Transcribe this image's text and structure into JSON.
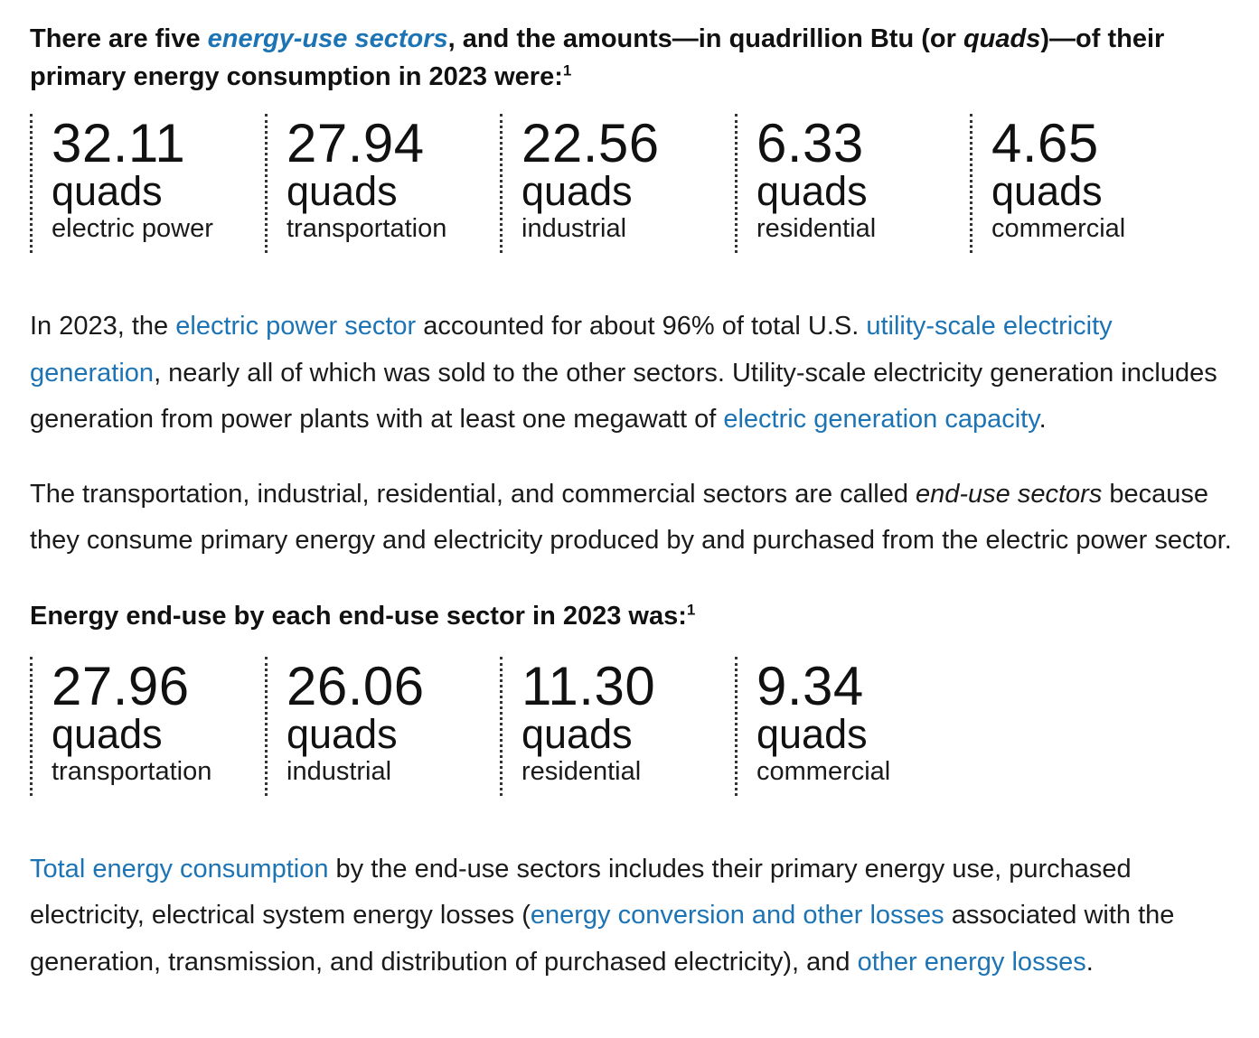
{
  "intro": {
    "prefix": "There are five ",
    "link": "energy-use sectors",
    "middle": ", and the amounts—in quadrillion Btu (or ",
    "italic": "quads",
    "suffix": ")—of their primary energy consumption in 2023 were:",
    "footnote": "1"
  },
  "primary_stats": [
    {
      "value": "32.11",
      "unit": "quads",
      "label": "electric power"
    },
    {
      "value": "27.94",
      "unit": "quads",
      "label": "transportation"
    },
    {
      "value": "22.56",
      "unit": "quads",
      "label": "industrial"
    },
    {
      "value": "6.33",
      "unit": "quads",
      "label": "residential"
    },
    {
      "value": "4.65",
      "unit": "quads",
      "label": "commercial"
    }
  ],
  "para1": {
    "t1": "In 2023, the ",
    "link1": "electric power sector",
    "t2": " accounted for about 96% of total U.S. ",
    "link2": "utility-scale electricity generation",
    "t3": ", nearly all of which was sold to the other sectors. Utility-scale electricity generation includes generation from power plants with at least one megawatt of ",
    "link3": "electric generation capacity",
    "t4": "."
  },
  "para2": {
    "t1": "The transportation, industrial, residential, and commercial sectors are called ",
    "italic": "end-use sectors",
    "t2": " because they consume primary energy and electricity produced by and purchased from the electric power sector."
  },
  "endUseHeading": {
    "text": "Energy end-use by each end-use sector in 2023 was:",
    "footnote": "1"
  },
  "enduse_stats": [
    {
      "value": "27.96",
      "unit": "quads",
      "label": "transportation"
    },
    {
      "value": "26.06",
      "unit": "quads",
      "label": "industrial"
    },
    {
      "value": "11.30",
      "unit": "quads",
      "label": "residential"
    },
    {
      "value": "9.34",
      "unit": "quads",
      "label": "commercial"
    }
  ],
  "para3": {
    "link1": "Total energy consumption",
    "t1": " by the end-use sectors includes their primary energy use, purchased electricity, electrical system energy losses (",
    "link2": "energy conversion and other losses",
    "t2": " associated with the generation, transmission, and distribution of purchased electricity), and ",
    "link3": "other energy losses",
    "t3": "."
  },
  "colors": {
    "link": "#1d74b5",
    "text": "#1a1a1a"
  }
}
